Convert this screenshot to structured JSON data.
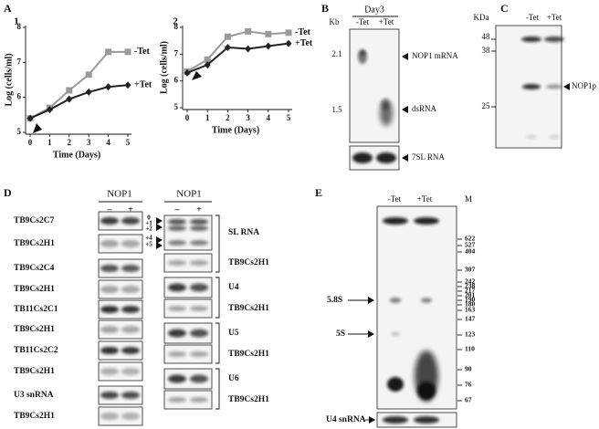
{
  "panel_a": {
    "label": "A"
  },
  "chart_data": [
    {
      "type": "line",
      "label": "1",
      "ylabel": "Log (cells/ml)",
      "xlabel": "Time (Days)",
      "x": [
        0,
        1,
        2,
        3,
        4,
        5
      ],
      "xlim": [
        0,
        5
      ],
      "xticks": [
        0,
        1,
        2,
        3,
        4,
        5
      ],
      "ylim": [
        5,
        8
      ],
      "yticks": [
        5,
        6,
        7,
        8
      ],
      "series": [
        {
          "name": "-Tet",
          "color": "#9a9a9a",
          "marker": "square",
          "values": [
            5.4,
            5.7,
            6.2,
            6.65,
            7.3,
            7.3
          ]
        },
        {
          "name": "+Tet",
          "color": "#222222",
          "marker": "diamond",
          "values": [
            5.4,
            5.65,
            5.95,
            6.15,
            6.3,
            6.35
          ]
        }
      ]
    },
    {
      "type": "line",
      "label": "2",
      "ylabel": "Log (cells/ml)",
      "xlabel": "Time (Days)",
      "x": [
        0,
        1,
        2,
        3,
        4,
        5
      ],
      "xlim": [
        0,
        5
      ],
      "xticks": [
        0,
        1,
        2,
        3,
        4,
        5
      ],
      "ylim": [
        5,
        8
      ],
      "yticks": [
        5,
        6,
        7,
        8
      ],
      "series": [
        {
          "name": "-Tet",
          "color": "#9a9a9a",
          "marker": "square",
          "values": [
            6.35,
            6.8,
            7.65,
            7.85,
            7.75,
            7.8
          ]
        },
        {
          "name": "+Tet",
          "color": "#222222",
          "marker": "diamond",
          "values": [
            6.3,
            6.6,
            7.25,
            7.2,
            7.3,
            7.4
          ]
        }
      ]
    }
  ],
  "panel_b": {
    "label": "B",
    "header": "Day3",
    "unit": "Kb",
    "lanes": [
      "-Tet",
      "+Tet"
    ],
    "size_markers": [
      "2.1",
      "1.5"
    ],
    "bands": [
      "NOP1 mRNA",
      "dsRNA"
    ],
    "loading_control": "7SL RNA"
  },
  "panel_c": {
    "label": "C",
    "unit": "KDa",
    "lanes": [
      "-Tet",
      "+Tet"
    ],
    "size_markers": [
      "48",
      "38",
      "25"
    ],
    "bands": [
      "NOP1p"
    ]
  },
  "panel_d": {
    "label": "D",
    "left": {
      "header": "NOP1",
      "lanes": [
        "–",
        "+"
      ],
      "rows": [
        "TB9Cs2C7",
        "TB9Cs2H1",
        "TB9Cs2C4",
        "TB9Cs2H1",
        "TB11Cs2C1",
        "TB9Cs2H1",
        "TB11Cs2C2",
        "TB9Cs2H1",
        "U3 snRNA",
        "TB9Cs2H1"
      ]
    },
    "right": {
      "header": "NOP1",
      "lanes": [
        "–",
        "+"
      ],
      "ladder": [
        "0",
        "+1",
        "+2",
        "+4",
        "+5"
      ],
      "rows": [
        "SL RNA",
        "TB9Cs2H1",
        "U4",
        "TB9Cs2H1",
        "U5",
        "TB9Cs2H1",
        "U6",
        "TB9Cs2H1"
      ]
    }
  },
  "panel_e": {
    "label": "E",
    "lanes": [
      "-Tet",
      "+Tet",
      "M"
    ],
    "markers": [
      "622",
      "527",
      "404",
      "307",
      "242",
      "238",
      "217",
      "201",
      "190",
      "180",
      "163",
      "147",
      "123",
      "110",
      "90",
      "76",
      "67"
    ],
    "bands": [
      "5.8S",
      "5S"
    ],
    "loading_control": "U4 snRNA"
  }
}
